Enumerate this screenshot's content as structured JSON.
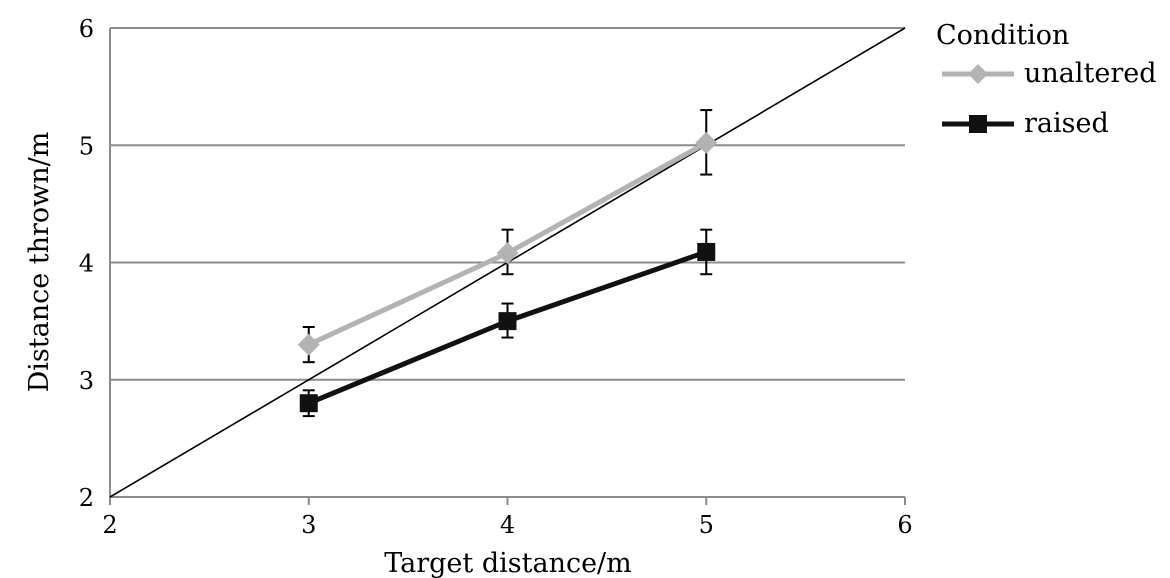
{
  "chart_data": {
    "type": "line",
    "title": "",
    "xlabel": "Target distance/m",
    "ylabel": "Distance thrown/m",
    "xlim": [
      2,
      6
    ],
    "ylim": [
      2,
      6
    ],
    "x_ticks": [
      "2",
      "3",
      "4",
      "5",
      "6"
    ],
    "y_ticks": [
      "2",
      "3",
      "4",
      "5",
      "6"
    ],
    "grid": "horizontal",
    "legend": {
      "title": "Condition",
      "placement": "top-right",
      "entries": [
        "unaltered",
        "raised"
      ]
    },
    "reference_line": {
      "x": [
        2,
        6
      ],
      "y": [
        2,
        6
      ],
      "color": "#000000"
    },
    "series": [
      {
        "name": "unaltered",
        "x": [
          3,
          4,
          5
        ],
        "values": [
          3.3,
          4.08,
          5.02
        ],
        "err_low": [
          3.15,
          3.9,
          4.75
        ],
        "err_high": [
          3.45,
          4.28,
          5.3
        ],
        "color": "#b3b3b3",
        "marker": "diamond"
      },
      {
        "name": "raised",
        "x": [
          3,
          4,
          5
        ],
        "values": [
          2.8,
          3.5,
          4.09
        ],
        "err_low": [
          2.69,
          3.36,
          3.9
        ],
        "err_high": [
          2.91,
          3.65,
          4.28
        ],
        "color": "#111111",
        "marker": "square"
      }
    ]
  }
}
